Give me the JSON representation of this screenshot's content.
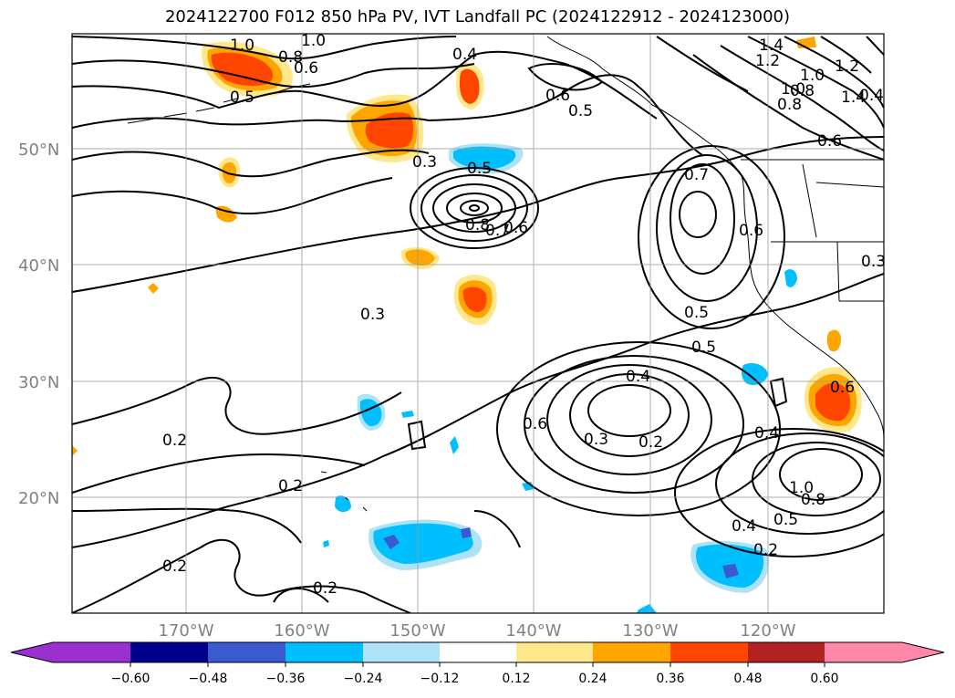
{
  "title": "2024122700 F012 850 hPa PV, IVT Landfall PC (2024122912 - 2024123000)",
  "map": {
    "projection": "PlateCarree",
    "grid": true,
    "lat_labels": [
      "50°N",
      "40°N",
      "30°N",
      "20°N"
    ],
    "lon_labels": [
      "170°W",
      "160°W",
      "150°W",
      "140°W",
      "130°W",
      "120°W"
    ]
  },
  "contour_labels": [
    "1.0",
    "1.0",
    "0.8",
    "0.6",
    "0.5",
    "0.4",
    "0.6",
    "0.5",
    "1.4",
    "1.2",
    "1.0",
    "1.0",
    "0.8",
    "0.6",
    "0.4",
    "1.4",
    "1.2",
    "0.8",
    "0.3",
    "0.5",
    "0.8",
    "0.7",
    "0.6",
    "0.7",
    "0.6",
    "0.3",
    "0.3",
    "0.5",
    "0.5",
    "0.4",
    "0.6",
    "0.3",
    "0.2",
    "0.6",
    "0.2",
    "0.4",
    "1.0",
    "0.8",
    "0.5",
    "0.4",
    "0.2",
    "0.2",
    "0.2",
    "0.2"
  ],
  "colorbar": {
    "ticks": [
      "−0.60",
      "−0.48",
      "−0.36",
      "−0.24",
      "−0.12",
      "0.12",
      "0.24",
      "0.36",
      "0.48",
      "0.60"
    ],
    "colors": [
      "#9b30d0",
      "#00008b",
      "#3a5bd0",
      "#00bfff",
      "#aee3f7",
      "#ffffff",
      "#ffe88c",
      "#ffa500",
      "#ff4500",
      "#b22222",
      "#ff88aa"
    ]
  }
}
